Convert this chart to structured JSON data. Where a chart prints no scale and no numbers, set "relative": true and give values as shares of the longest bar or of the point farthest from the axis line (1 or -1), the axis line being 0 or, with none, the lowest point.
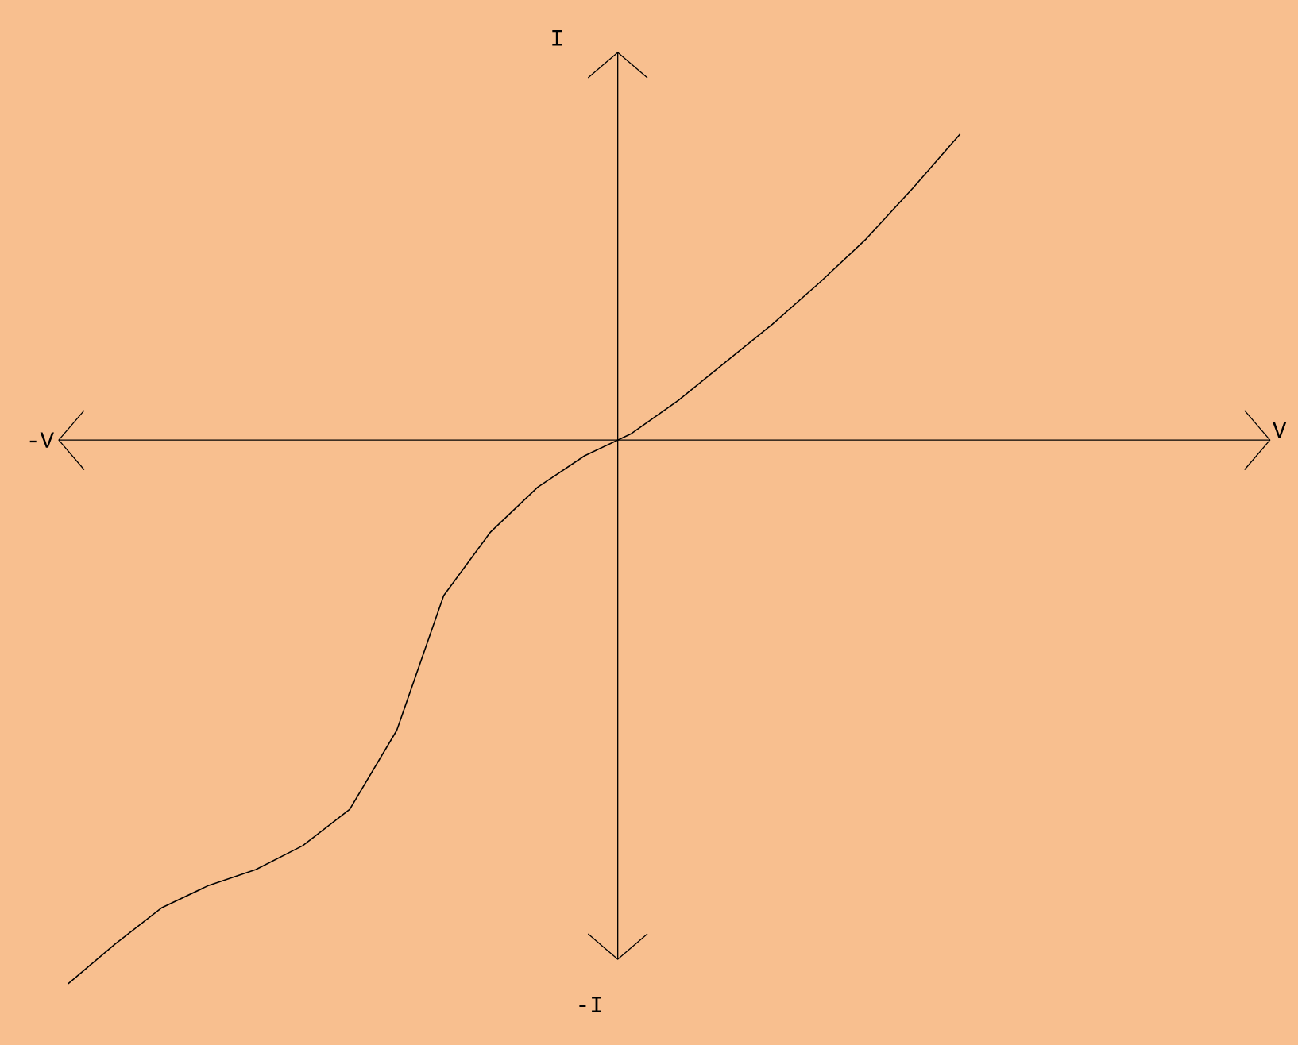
{
  "chart_data": {
    "type": "line",
    "relative": true,
    "annotations": [
      "I",
      "-V",
      "V",
      "-I"
    ],
    "categories": [
      null,
      null,
      null,
      null,
      null,
      null,
      null,
      null,
      null,
      null,
      null,
      null,
      null,
      null,
      null,
      null,
      null,
      null,
      null,
      null
    ],
    "series": [
      {
        "color": "#000000",
        "values": [
          -1.0,
          -0.927,
          -0.86,
          -0.819,
          -0.79,
          -0.746,
          -0.679,
          -0.534,
          -0.286,
          -0.169,
          -0.087,
          -0.029,
          0.012,
          0.073,
          0.143,
          0.213,
          0.289,
          0.37,
          0.464,
          0.563
        ]
      }
    ]
  }
}
